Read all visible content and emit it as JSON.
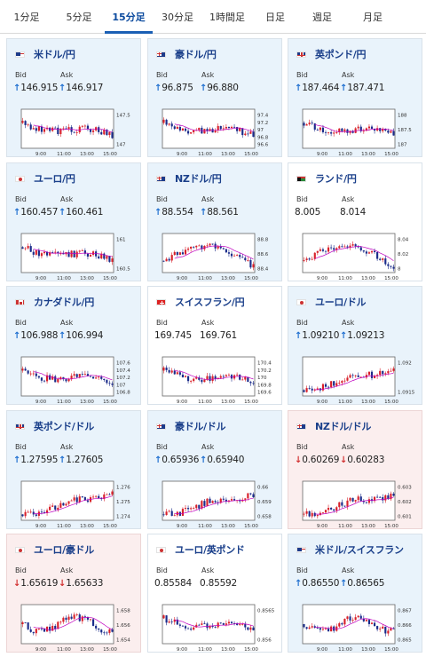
{
  "tabs": [
    "1分足",
    "5分足",
    "15分足",
    "30分足",
    "1時間足",
    "日足",
    "週足",
    "月足"
  ],
  "active_tab": 2,
  "labels": {
    "bid": "Bid",
    "ask": "Ask"
  },
  "colors": {
    "accent": "#1a5fb4",
    "up_arrow": "#1f6fd0",
    "down_arrow": "#d23030",
    "bull_candle": "#d8202a",
    "bear_candle": "#1a2b8a",
    "moving_average": "#c000c0",
    "card_up_bg": "#e9f3fb",
    "card_down_bg": "#fbeeee"
  },
  "x_ticks": [
    "9:00",
    "11:00",
    "13:00",
    "15:00"
  ],
  "cards": [
    {
      "pair": "米ドル/円",
      "flag": "us",
      "trend": "up",
      "bid": "146.915",
      "ask": "146.917",
      "arrow": "up",
      "y_ticks": [
        "147.5",
        "147"
      ],
      "chart_data": {
        "type": "candlestick",
        "shape": "down",
        "legend": "none"
      }
    },
    {
      "pair": "豪ドル/円",
      "flag": "au",
      "trend": "up",
      "bid": "96.875",
      "ask": "96.880",
      "arrow": "up",
      "y_ticks": [
        "97.4",
        "97.2",
        "97",
        "96.8",
        "96.6"
      ],
      "chart_data": {
        "type": "candlestick",
        "shape": "down",
        "legend": "none"
      }
    },
    {
      "pair": "英ポンド/円",
      "flag": "gb",
      "trend": "up",
      "bid": "187.464",
      "ask": "187.471",
      "arrow": "up",
      "y_ticks": [
        "188",
        "187.5",
        "187"
      ],
      "chart_data": {
        "type": "candlestick",
        "shape": "down",
        "legend": "none"
      }
    },
    {
      "pair": "ユーロ/円",
      "flag": "eu",
      "trend": "up",
      "bid": "160.457",
      "ask": "160.461",
      "arrow": "up",
      "y_ticks": [
        "161",
        "160.5"
      ],
      "chart_data": {
        "type": "candlestick",
        "shape": "down",
        "legend": "none"
      }
    },
    {
      "pair": "NZドル/円",
      "flag": "nz",
      "trend": "up",
      "bid": "88.554",
      "ask": "88.561",
      "arrow": "up",
      "y_ticks": [
        "88.8",
        "88.6",
        "88.4"
      ],
      "chart_data": {
        "type": "candlestick",
        "shape": "hump",
        "legend": "none"
      }
    },
    {
      "pair": "ランド/円",
      "flag": "za",
      "trend": "flat",
      "bid": "8.005",
      "ask": "8.014",
      "arrow": "none",
      "y_ticks": [
        "8.04",
        "8.02",
        "8"
      ],
      "chart_data": {
        "type": "candlestick",
        "shape": "hump",
        "legend": "none"
      }
    },
    {
      "pair": "カナダドル/円",
      "flag": "ca",
      "trend": "up",
      "bid": "106.988",
      "ask": "106.994",
      "arrow": "up",
      "y_ticks": [
        "107.6",
        "107.4",
        "107.2",
        "107",
        "106.8"
      ],
      "chart_data": {
        "type": "candlestick",
        "shape": "down",
        "legend": "none"
      }
    },
    {
      "pair": "スイスフラン/円",
      "flag": "ch",
      "trend": "flat",
      "bid": "169.745",
      "ask": "169.761",
      "arrow": "none",
      "y_ticks": [
        "170.4",
        "170.2",
        "170",
        "169.8",
        "169.6"
      ],
      "chart_data": {
        "type": "candlestick",
        "shape": "down",
        "legend": "none"
      }
    },
    {
      "pair": "ユーロ/ドル",
      "flag": "eu",
      "trend": "up",
      "bid": "1.09210",
      "ask": "1.09213",
      "arrow": "up",
      "y_ticks": [
        "1.092",
        "1.0915"
      ],
      "chart_data": {
        "type": "candlestick",
        "shape": "rise",
        "legend": "none"
      }
    },
    {
      "pair": "英ポンド/ドル",
      "flag": "gb",
      "trend": "up",
      "bid": "1.27595",
      "ask": "1.27605",
      "arrow": "up",
      "y_ticks": [
        "1.276",
        "1.275",
        "1.274"
      ],
      "chart_data": {
        "type": "candlestick",
        "shape": "rise",
        "legend": "none"
      }
    },
    {
      "pair": "豪ドル/ドル",
      "flag": "au",
      "trend": "up",
      "bid": "0.65936",
      "ask": "0.65940",
      "arrow": "up",
      "y_ticks": [
        "0.66",
        "0.659",
        "0.658"
      ],
      "chart_data": {
        "type": "candlestick",
        "shape": "rise",
        "legend": "none"
      }
    },
    {
      "pair": "NZドル/ドル",
      "flag": "nz",
      "trend": "down",
      "bid": "0.60269",
      "ask": "0.60283",
      "arrow": "down",
      "y_ticks": [
        "0.603",
        "0.602",
        "0.601"
      ],
      "chart_data": {
        "type": "candlestick",
        "shape": "rise",
        "legend": "none"
      }
    },
    {
      "pair": "ユーロ/豪ドル",
      "flag": "eu",
      "trend": "down",
      "bid": "1.65619",
      "ask": "1.65633",
      "arrow": "down",
      "y_ticks": [
        "1.658",
        "1.656",
        "1.654"
      ],
      "chart_data": {
        "type": "candlestick",
        "shape": "flat",
        "legend": "none"
      }
    },
    {
      "pair": "ユーロ/英ポンド",
      "flag": "eu",
      "trend": "flat",
      "bid": "0.85584",
      "ask": "0.85592",
      "arrow": "none",
      "y_ticks": [
        "0.8565",
        "0.856"
      ],
      "chart_data": {
        "type": "candlestick",
        "shape": "down",
        "legend": "none"
      }
    },
    {
      "pair": "米ドル/スイスフラン",
      "flag": "us",
      "trend": "up",
      "bid": "0.86550",
      "ask": "0.86565",
      "arrow": "up",
      "y_ticks": [
        "0.867",
        "0.866",
        "0.865"
      ],
      "chart_data": {
        "type": "candlestick",
        "shape": "flat",
        "legend": "none"
      }
    }
  ]
}
